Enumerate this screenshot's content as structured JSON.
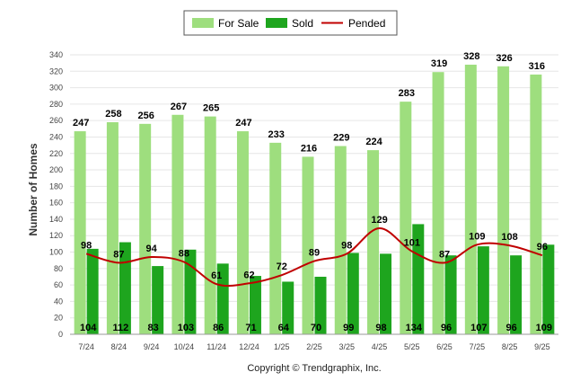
{
  "chart_data": {
    "type": "bar",
    "title": "",
    "ylabel": "Number of Homes",
    "xlabel": "",
    "ylim": [
      0,
      340
    ],
    "yticks": [
      0,
      20,
      40,
      60,
      80,
      100,
      120,
      140,
      160,
      180,
      200,
      220,
      240,
      260,
      280,
      300,
      320,
      340
    ],
    "categories": [
      "7/24",
      "8/24",
      "9/24",
      "10/24",
      "11/24",
      "12/24",
      "1/25",
      "2/25",
      "3/25",
      "4/25",
      "5/25",
      "6/25",
      "7/25",
      "8/25",
      "9/25"
    ],
    "series": [
      {
        "name": "For Sale",
        "kind": "bar",
        "color": "#9ede7e",
        "values": [
          247,
          258,
          256,
          267,
          265,
          247,
          233,
          216,
          229,
          224,
          283,
          319,
          328,
          326,
          316
        ]
      },
      {
        "name": "Sold",
        "kind": "bar",
        "color": "#1ea51e",
        "values": [
          104,
          112,
          83,
          103,
          86,
          71,
          64,
          70,
          99,
          98,
          134,
          96,
          107,
          96,
          109
        ]
      },
      {
        "name": "Pended",
        "kind": "line",
        "color": "#c00000",
        "values": [
          98,
          87,
          94,
          88,
          61,
          62,
          72,
          89,
          98,
          129,
          101,
          87,
          109,
          108,
          96
        ]
      }
    ],
    "legend_position": "top-center",
    "grid": true,
    "footer": "Copyright © Trendgraphix, Inc."
  }
}
